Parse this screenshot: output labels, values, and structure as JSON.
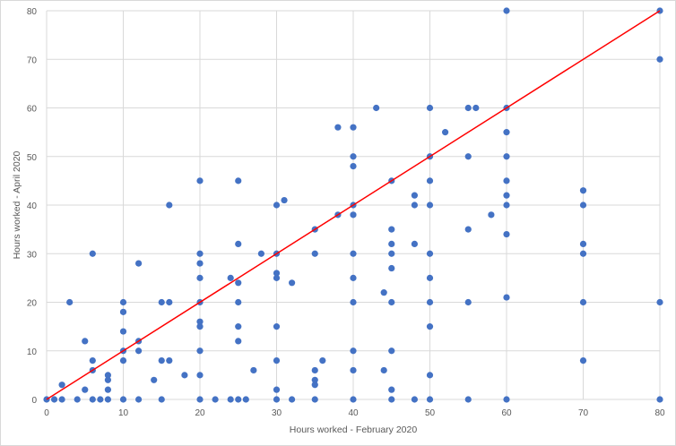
{
  "chart_data": {
    "type": "scatter",
    "xlabel": "Hours worked - February 2020",
    "ylabel": "Hours worked - April 2020",
    "xlim": [
      0,
      80
    ],
    "ylim": [
      0,
      80
    ],
    "xticks": [
      0,
      10,
      20,
      30,
      40,
      50,
      60,
      70,
      80
    ],
    "yticks": [
      0,
      10,
      20,
      30,
      40,
      50,
      60,
      70,
      80
    ],
    "grid": true,
    "legend": "none",
    "colors": {
      "points": "#4472c4",
      "reference_line": "#ff0000",
      "grid": "#d9d9d9"
    },
    "reference_line": {
      "from": [
        0,
        0
      ],
      "to": [
        80,
        80
      ]
    },
    "series": [
      {
        "points": [
          [
            0,
            0
          ],
          [
            1,
            0
          ],
          [
            2,
            0
          ],
          [
            2,
            3
          ],
          [
            3,
            20
          ],
          [
            4,
            0
          ],
          [
            5,
            12
          ],
          [
            5,
            2
          ],
          [
            6,
            30
          ],
          [
            6,
            8
          ],
          [
            6,
            6
          ],
          [
            6,
            0
          ],
          [
            7,
            0
          ],
          [
            8,
            5
          ],
          [
            8,
            4
          ],
          [
            8,
            2
          ],
          [
            8,
            0
          ],
          [
            10,
            20
          ],
          [
            10,
            18
          ],
          [
            10,
            14
          ],
          [
            10,
            10
          ],
          [
            10,
            8
          ],
          [
            10,
            0
          ],
          [
            12,
            28
          ],
          [
            12,
            12
          ],
          [
            12,
            10
          ],
          [
            12,
            0
          ],
          [
            14,
            4
          ],
          [
            15,
            20
          ],
          [
            15,
            8
          ],
          [
            15,
            0
          ],
          [
            16,
            40
          ],
          [
            16,
            20
          ],
          [
            16,
            8
          ],
          [
            18,
            5
          ],
          [
            20,
            45
          ],
          [
            20,
            30
          ],
          [
            20,
            28
          ],
          [
            20,
            25
          ],
          [
            20,
            20
          ],
          [
            20,
            16
          ],
          [
            20,
            15
          ],
          [
            20,
            10
          ],
          [
            20,
            5
          ],
          [
            20,
            0
          ],
          [
            22,
            0
          ],
          [
            24,
            25
          ],
          [
            24,
            0
          ],
          [
            25,
            45
          ],
          [
            25,
            32
          ],
          [
            25,
            24
          ],
          [
            25,
            20
          ],
          [
            25,
            15
          ],
          [
            25,
            12
          ],
          [
            25,
            0
          ],
          [
            26,
            0
          ],
          [
            27,
            6
          ],
          [
            28,
            30
          ],
          [
            30,
            40
          ],
          [
            30,
            30
          ],
          [
            30,
            26
          ],
          [
            30,
            25
          ],
          [
            30,
            15
          ],
          [
            30,
            8
          ],
          [
            30,
            2
          ],
          [
            30,
            0
          ],
          [
            31,
            41
          ],
          [
            32,
            24
          ],
          [
            32,
            0
          ],
          [
            35,
            35
          ],
          [
            35,
            30
          ],
          [
            35,
            6
          ],
          [
            35,
            4
          ],
          [
            35,
            3
          ],
          [
            35,
            0
          ],
          [
            36,
            8
          ],
          [
            38,
            56
          ],
          [
            38,
            38
          ],
          [
            40,
            56
          ],
          [
            40,
            50
          ],
          [
            40,
            48
          ],
          [
            40,
            40
          ],
          [
            40,
            38
          ],
          [
            40,
            30
          ],
          [
            40,
            25
          ],
          [
            40,
            20
          ],
          [
            40,
            10
          ],
          [
            40,
            6
          ],
          [
            40,
            0
          ],
          [
            43,
            60
          ],
          [
            44,
            22
          ],
          [
            44,
            6
          ],
          [
            45,
            45
          ],
          [
            45,
            35
          ],
          [
            45,
            32
          ],
          [
            45,
            30
          ],
          [
            45,
            27
          ],
          [
            45,
            20
          ],
          [
            45,
            10
          ],
          [
            45,
            2
          ],
          [
            45,
            0
          ],
          [
            48,
            42
          ],
          [
            48,
            40
          ],
          [
            48,
            32
          ],
          [
            48,
            0
          ],
          [
            50,
            60
          ],
          [
            50,
            50
          ],
          [
            50,
            45
          ],
          [
            50,
            40
          ],
          [
            50,
            30
          ],
          [
            50,
            25
          ],
          [
            50,
            20
          ],
          [
            50,
            15
          ],
          [
            50,
            5
          ],
          [
            50,
            0
          ],
          [
            52,
            55
          ],
          [
            55,
            60
          ],
          [
            55,
            50
          ],
          [
            55,
            35
          ],
          [
            55,
            20
          ],
          [
            55,
            0
          ],
          [
            56,
            60
          ],
          [
            58,
            38
          ],
          [
            60,
            80
          ],
          [
            60,
            60
          ],
          [
            60,
            55
          ],
          [
            60,
            50
          ],
          [
            60,
            45
          ],
          [
            60,
            42
          ],
          [
            60,
            40
          ],
          [
            60,
            34
          ],
          [
            60,
            21
          ],
          [
            60,
            0
          ],
          [
            70,
            43
          ],
          [
            70,
            40
          ],
          [
            70,
            32
          ],
          [
            70,
            30
          ],
          [
            70,
            20
          ],
          [
            70,
            8
          ],
          [
            80,
            80
          ],
          [
            80,
            70
          ],
          [
            80,
            20
          ],
          [
            80,
            0
          ]
        ]
      }
    ]
  }
}
